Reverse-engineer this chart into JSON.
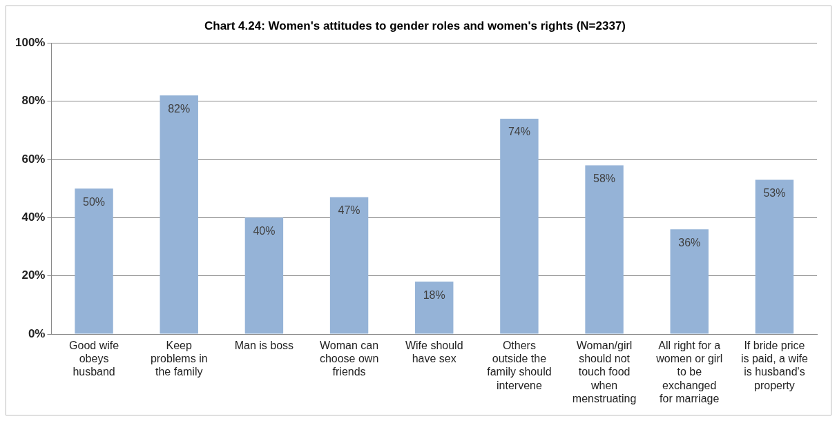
{
  "chart_data": {
    "type": "bar",
    "title": "Chart 4.24: Women's attitudes to gender roles and women's rights (N=2337)",
    "categories": [
      "Good wife obeys husband",
      "Keep problems in the family",
      "Man is boss",
      "Woman can choose own friends",
      "Wife should have sex",
      "Others outside the family should intervene",
      "Woman/girl should not touch food when menstruating",
      "All right for a women or girl to be exchanged for marriage",
      "If bride price is paid, a wife is husband's property"
    ],
    "values": [
      50,
      82,
      40,
      47,
      18,
      74,
      58,
      36,
      53
    ],
    "value_labels": [
      "50%",
      "82%",
      "40%",
      "47%",
      "18%",
      "74%",
      "58%",
      "36%",
      "53%"
    ],
    "color": "#95b3d7",
    "ylim": [
      0,
      100
    ],
    "yticks": [
      {
        "value": 0,
        "label": "0%"
      },
      {
        "value": 20,
        "label": "20%"
      },
      {
        "value": 40,
        "label": "40%"
      },
      {
        "value": 60,
        "label": "60%"
      },
      {
        "value": 80,
        "label": "80%"
      },
      {
        "value": 100,
        "label": "100%"
      }
    ],
    "grid": "y",
    "legend": false
  }
}
